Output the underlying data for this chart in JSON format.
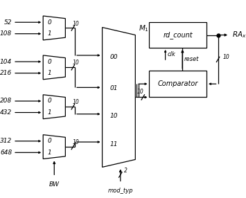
{
  "bg_color": "#ffffff",
  "line_color": "#000000",
  "fig_width": 3.55,
  "fig_height": 2.86,
  "dpi": 100,
  "inputs": [
    "52",
    "108",
    "104",
    "216",
    "208",
    "432",
    "312",
    "648"
  ],
  "mux_sel_labels": [
    "0",
    "1",
    "0",
    "1",
    "0",
    "1",
    "0",
    "1"
  ],
  "big_mux_out_labels": [
    "00",
    "01",
    "10",
    "11"
  ],
  "M1_label": "M_1",
  "mod_typ_label": "mod_typ",
  "BW_label": "BW",
  "rd_count_label": "rd_count",
  "comparator_label": "Comparator",
  "clk_label": "clk",
  "reset_label": "reset",
  "RA_label": "RA_x",
  "bus_label": "10",
  "mod_bus": "2"
}
